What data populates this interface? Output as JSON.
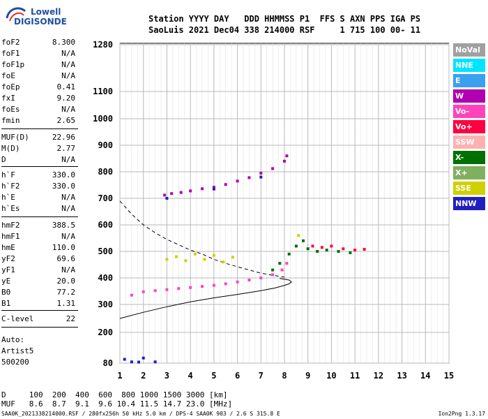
{
  "logo": {
    "line1": "Lowell",
    "line2": "DIGISONDE"
  },
  "header": {
    "line1": "Station YYYY DAY   DDD HHMMSS P1  FFS S AXN PPS IGA PS",
    "line2": "SaoLuis 2021 Dec04 338 214000 RSF     1 715 100 00- 11"
  },
  "params": [
    {
      "k": "foF2",
      "v": "8.300"
    },
    {
      "k": "foF1",
      "v": "N/A"
    },
    {
      "k": "foF1p",
      "v": "N/A"
    },
    {
      "k": "foE",
      "v": "N/A"
    },
    {
      "k": "foEp",
      "v": "0.41"
    },
    {
      "k": "fxI",
      "v": "9.20"
    },
    {
      "k": "foEs",
      "v": "N/A"
    },
    {
      "k": "fmin",
      "v": "2.65"
    },
    {
      "k": "MUF(D)",
      "v": "22.96"
    },
    {
      "k": "M(D)",
      "v": "2.77"
    },
    {
      "k": "D",
      "v": "N/A"
    },
    {
      "k": "h`F",
      "v": "330.0"
    },
    {
      "k": "h`F2",
      "v": "330.0"
    },
    {
      "k": "h`E",
      "v": "N/A"
    },
    {
      "k": "h`Es",
      "v": "N/A"
    },
    {
      "k": "hmF2",
      "v": "388.5"
    },
    {
      "k": "hmF1",
      "v": "N/A"
    },
    {
      "k": "hmE",
      "v": "110.0"
    },
    {
      "k": "yF2",
      "v": "69.6"
    },
    {
      "k": "yF1",
      "v": "N/A"
    },
    {
      "k": "yE",
      "v": "20.0"
    },
    {
      "k": "B0",
      "v": "77.2"
    },
    {
      "k": "B1",
      "v": "1.31"
    },
    {
      "k": "C-level",
      "v": "22"
    }
  ],
  "auto": {
    "line1": "Auto:",
    "line2": "Artist5",
    "line3": "500200"
  },
  "legend": [
    {
      "label": "NoVal",
      "color": "#a0a0a0"
    },
    {
      "label": "NNE",
      "color": "#00e5ff"
    },
    {
      "label": "E",
      "color": "#3aa0f0"
    },
    {
      "label": "W",
      "color": "#b000b0"
    },
    {
      "label": "Vo-",
      "color": "#ff44bb"
    },
    {
      "label": "Vo+",
      "color": "#ff0040"
    },
    {
      "label": "SSW",
      "color": "#ffb0b0"
    },
    {
      "label": "X-",
      "color": "#007000"
    },
    {
      "label": "X+",
      "color": "#7fb060"
    },
    {
      "label": "SSE",
      "color": "#d0d000"
    },
    {
      "label": "NNW",
      "color": "#2020c0"
    }
  ],
  "footer": {
    "d_line": "D     100  200  400  600  800 1000 1500 3000 [km]",
    "muf_line": "MUF   8.6  8.7  9.1  9.6 10.4 11.5 14.7 23.0 [MHz]",
    "info": "SAA0K_2021338214000.RSF / 280fx256h 50 kHz 5.0 km / DPS-4 SAA0K 903 / 2.6 S 315.8 E",
    "version": "Ion2Png 1.3.17"
  },
  "chart_data": {
    "type": "scatter",
    "title": "",
    "xlabel": "",
    "ylabel": "",
    "xlim": [
      1,
      15
    ],
    "ylim": [
      80,
      1280
    ],
    "y_scale": "nonlinear (ionogram height scale)",
    "x_ticks": [
      1,
      2,
      3,
      4,
      5,
      6,
      7,
      8,
      9,
      10,
      11,
      12,
      13,
      14,
      15
    ],
    "y_ticks": [
      80,
      200,
      300,
      400,
      500,
      600,
      700,
      800,
      900,
      1000,
      1100,
      1280
    ],
    "grid": true,
    "series": [
      {
        "name": "Vo-",
        "color": "#ff44bb",
        "points": [
          [
            1.5,
            335
          ],
          [
            2.0,
            348
          ],
          [
            2.5,
            352
          ],
          [
            3.0,
            356
          ],
          [
            3.5,
            360
          ],
          [
            4.0,
            364
          ],
          [
            4.5,
            368
          ],
          [
            5.0,
            372
          ],
          [
            5.5,
            378
          ],
          [
            6.0,
            385
          ],
          [
            6.5,
            392
          ],
          [
            7.0,
            400
          ],
          [
            7.5,
            412
          ],
          [
            7.9,
            430
          ],
          [
            8.1,
            455
          ]
        ]
      },
      {
        "name": "W",
        "color": "#b000b0",
        "points": [
          [
            2.9,
            712
          ],
          [
            3.2,
            718
          ],
          [
            3.6,
            722
          ],
          [
            4.0,
            728
          ],
          [
            4.5,
            736
          ],
          [
            5.0,
            742
          ],
          [
            5.5,
            752
          ],
          [
            6.0,
            765
          ],
          [
            6.5,
            778
          ],
          [
            7.0,
            795
          ],
          [
            7.5,
            812
          ],
          [
            8.0,
            840
          ],
          [
            8.1,
            860
          ]
        ]
      },
      {
        "name": "X-",
        "color": "#007000",
        "points": [
          [
            7.5,
            430
          ],
          [
            7.8,
            455
          ],
          [
            8.2,
            490
          ],
          [
            8.5,
            520
          ],
          [
            8.8,
            540
          ],
          [
            9.0,
            510
          ],
          [
            9.4,
            500
          ],
          [
            9.8,
            505
          ],
          [
            10.3,
            500
          ],
          [
            10.8,
            495
          ]
        ]
      },
      {
        "name": "SSE",
        "color": "#d0d000",
        "points": [
          [
            3.0,
            470
          ],
          [
            3.4,
            480
          ],
          [
            3.8,
            465
          ],
          [
            4.2,
            490
          ],
          [
            4.6,
            470
          ],
          [
            5.0,
            485
          ],
          [
            5.4,
            460
          ],
          [
            5.8,
            478
          ],
          [
            8.6,
            560
          ]
        ]
      },
      {
        "name": "Vo+",
        "color": "#ff0040",
        "points": [
          [
            9.2,
            520
          ],
          [
            9.6,
            515
          ],
          [
            10.0,
            520
          ],
          [
            10.5,
            510
          ],
          [
            11.0,
            505
          ],
          [
            11.4,
            508
          ]
        ]
      },
      {
        "name": "NNW",
        "color": "#2020c0",
        "points": [
          [
            1.2,
            95
          ],
          [
            1.5,
            85
          ],
          [
            1.8,
            84
          ],
          [
            2.0,
            100
          ],
          [
            2.5,
            85
          ],
          [
            3.0,
            700
          ],
          [
            5.0,
            735
          ],
          [
            7.0,
            780
          ]
        ]
      }
    ],
    "profile_curves": [
      {
        "name": "true-height",
        "style": "solid",
        "points": [
          [
            1.0,
            250
          ],
          [
            2.0,
            272
          ],
          [
            3.0,
            292
          ],
          [
            4.0,
            310
          ],
          [
            5.0,
            325
          ],
          [
            6.0,
            338
          ],
          [
            7.0,
            352
          ],
          [
            7.6,
            362
          ],
          [
            8.0,
            372
          ],
          [
            8.2,
            378
          ],
          [
            8.3,
            385
          ],
          [
            8.2,
            392
          ],
          [
            7.8,
            398
          ]
        ]
      },
      {
        "name": "model",
        "style": "dashed",
        "points": [
          [
            1.0,
            690
          ],
          [
            1.5,
            640
          ],
          [
            2.0,
            600
          ],
          [
            2.5,
            570
          ],
          [
            3.0,
            545
          ],
          [
            3.5,
            525
          ],
          [
            4.0,
            505
          ],
          [
            4.5,
            490
          ],
          [
            5.0,
            470
          ],
          [
            5.5,
            455
          ],
          [
            6.0,
            442
          ],
          [
            6.5,
            430
          ],
          [
            7.0,
            418
          ],
          [
            7.5,
            410
          ],
          [
            8.0,
            403
          ]
        ]
      }
    ]
  }
}
